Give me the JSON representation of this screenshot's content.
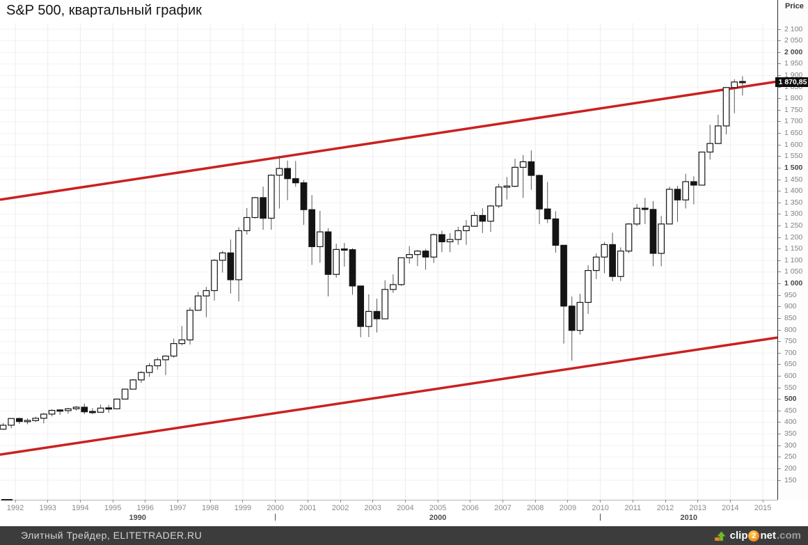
{
  "title": "S&P 500, квартальный график",
  "price_axis": {
    "label": "Price",
    "badge": "1 870,85"
  },
  "footer": {
    "credit": "Элитный Трейдер, ELITETRADER.RU",
    "logo": {
      "pre": "clip",
      "num": "2",
      "post": "net",
      "tld": ".com"
    }
  },
  "chart_data": {
    "type": "candlestick",
    "title": "S&P 500, квартальный график",
    "symbol": "S&P 500",
    "frequency": "quarterly",
    "ylabel": "Price",
    "last_price": 1870.85,
    "y_axis": {
      "min": 150,
      "max": 2100,
      "step": 50,
      "bold_step": 500
    },
    "x_axis": {
      "years": [
        1992,
        1993,
        1994,
        1995,
        1996,
        1997,
        1998,
        1999,
        2000,
        2001,
        2002,
        2003,
        2004,
        2005,
        2006,
        2007,
        2008,
        2009,
        2010,
        2011,
        2012,
        2013,
        2014,
        2015
      ],
      "decade_labels": [
        "1990",
        "2000",
        "2010"
      ],
      "decade_boundaries": [
        2000,
        2010
      ]
    },
    "trend_channel": {
      "color": "#cb2020",
      "upper": {
        "start_price": 1363,
        "end_price": 1874
      },
      "lower": {
        "start_price": 261,
        "end_price": 767
      }
    },
    "candles": [
      [
        "1991Q3",
        371,
        397,
        368,
        388
      ],
      [
        "1991Q4",
        388,
        417,
        375,
        417
      ],
      [
        "1992Q1",
        417,
        421,
        394,
        404
      ],
      [
        "1992Q2",
        404,
        418,
        392,
        408
      ],
      [
        "1992Q3",
        408,
        425,
        402,
        418
      ],
      [
        "1992Q4",
        418,
        441,
        396,
        436
      ],
      [
        "1993Q1",
        436,
        457,
        426,
        452
      ],
      [
        "1993Q2",
        452,
        456,
        433,
        451
      ],
      [
        "1993Q3",
        451,
        463,
        438,
        459
      ],
      [
        "1993Q4",
        459,
        471,
        452,
        466
      ],
      [
        "1994Q1",
        466,
        482,
        436,
        446
      ],
      [
        "1994Q2",
        446,
        462,
        435,
        444
      ],
      [
        "1994Q3",
        444,
        477,
        444,
        462
      ],
      [
        "1994Q4",
        462,
        476,
        442,
        459
      ],
      [
        "1995Q1",
        459,
        503,
        457,
        501
      ],
      [
        "1995Q2",
        501,
        546,
        501,
        544
      ],
      [
        "1995Q3",
        544,
        587,
        544,
        584
      ],
      [
        "1995Q4",
        584,
        622,
        571,
        616
      ],
      [
        "1996Q1",
        616,
        657,
        597,
        645
      ],
      [
        "1996Q2",
        645,
        681,
        628,
        671
      ],
      [
        "1996Q3",
        671,
        690,
        605,
        687
      ],
      [
        "1996Q4",
        687,
        762,
        680,
        741
      ],
      [
        "1997Q1",
        741,
        817,
        733,
        757
      ],
      [
        "1997Q2",
        757,
        898,
        737,
        885
      ],
      [
        "1997Q3",
        885,
        965,
        885,
        947
      ],
      [
        "1997Q4",
        947,
        986,
        855,
        970
      ],
      [
        "1998Q1",
        970,
        1106,
        927,
        1101
      ],
      [
        "1998Q2",
        1101,
        1142,
        1048,
        1133
      ],
      [
        "1998Q3",
        1133,
        1191,
        957,
        1017
      ],
      [
        "1998Q4",
        1017,
        1244,
        923,
        1229
      ],
      [
        "1999Q1",
        1229,
        1327,
        1212,
        1286
      ],
      [
        "1999Q2",
        1286,
        1375,
        1282,
        1372
      ],
      [
        "1999Q3",
        1372,
        1420,
        1233,
        1283
      ],
      [
        "1999Q4",
        1283,
        1473,
        1233,
        1469
      ],
      [
        "2000Q1",
        1469,
        1553,
        1325,
        1498
      ],
      [
        "2000Q2",
        1498,
        1532,
        1361,
        1454
      ],
      [
        "2000Q3",
        1454,
        1530,
        1419,
        1436
      ],
      [
        "2000Q4",
        1436,
        1448,
        1254,
        1320
      ],
      [
        "2001Q1",
        1320,
        1383,
        1081,
        1160
      ],
      [
        "2001Q2",
        1160,
        1315,
        1091,
        1224
      ],
      [
        "2001Q3",
        1224,
        1240,
        945,
        1040
      ],
      [
        "2001Q4",
        1040,
        1173,
        1026,
        1148
      ],
      [
        "2002Q1",
        1148,
        1176,
        1074,
        1147
      ],
      [
        "2002Q2",
        1147,
        1154,
        952,
        990
      ],
      [
        "2002Q3",
        990,
        990,
        768,
        815
      ],
      [
        "2002Q4",
        815,
        954,
        769,
        880
      ],
      [
        "2003Q1",
        880,
        935,
        789,
        848
      ],
      [
        "2003Q2",
        848,
        1015,
        847,
        975
      ],
      [
        "2003Q3",
        975,
        1040,
        960,
        996
      ],
      [
        "2003Q4",
        996,
        1112,
        990,
        1112
      ],
      [
        "2004Q1",
        1112,
        1163,
        1087,
        1126
      ],
      [
        "2004Q2",
        1126,
        1146,
        1076,
        1141
      ],
      [
        "2004Q3",
        1141,
        1150,
        1060,
        1115
      ],
      [
        "2004Q4",
        1115,
        1217,
        1090,
        1212
      ],
      [
        "2005Q1",
        1212,
        1229,
        1136,
        1181
      ],
      [
        "2005Q2",
        1181,
        1219,
        1136,
        1191
      ],
      [
        "2005Q3",
        1191,
        1246,
        1168,
        1229
      ],
      [
        "2005Q4",
        1229,
        1275,
        1168,
        1248
      ],
      [
        "2006Q1",
        1248,
        1310,
        1246,
        1295
      ],
      [
        "2006Q2",
        1295,
        1326,
        1219,
        1270
      ],
      [
        "2006Q3",
        1270,
        1340,
        1224,
        1336
      ],
      [
        "2006Q4",
        1336,
        1432,
        1327,
        1418
      ],
      [
        "2007Q1",
        1418,
        1461,
        1364,
        1421
      ],
      [
        "2007Q2",
        1421,
        1540,
        1417,
        1503
      ],
      [
        "2007Q3",
        1503,
        1556,
        1371,
        1527
      ],
      [
        "2007Q4",
        1527,
        1576,
        1406,
        1468
      ],
      [
        "2008Q1",
        1468,
        1472,
        1257,
        1323
      ],
      [
        "2008Q2",
        1323,
        1440,
        1262,
        1280
      ],
      [
        "2008Q3",
        1280,
        1313,
        1134,
        1166
      ],
      [
        "2008Q4",
        1166,
        1167,
        741,
        903
      ],
      [
        "2009Q1",
        903,
        944,
        667,
        798
      ],
      [
        "2009Q2",
        798,
        956,
        780,
        919
      ],
      [
        "2009Q3",
        919,
        1080,
        869,
        1057
      ],
      [
        "2009Q4",
        1057,
        1130,
        1020,
        1115
      ],
      [
        "2010Q1",
        1115,
        1180,
        1045,
        1169
      ],
      [
        "2010Q2",
        1169,
        1220,
        1011,
        1031
      ],
      [
        "2010Q3",
        1031,
        1157,
        1011,
        1141
      ],
      [
        "2010Q4",
        1141,
        1262,
        1132,
        1258
      ],
      [
        "2011Q1",
        1258,
        1344,
        1249,
        1326
      ],
      [
        "2011Q2",
        1326,
        1371,
        1258,
        1321
      ],
      [
        "2011Q3",
        1321,
        1357,
        1075,
        1131
      ],
      [
        "2011Q4",
        1131,
        1293,
        1075,
        1258
      ],
      [
        "2012Q1",
        1258,
        1419,
        1258,
        1408
      ],
      [
        "2012Q2",
        1408,
        1422,
        1267,
        1362
      ],
      [
        "2012Q3",
        1362,
        1475,
        1325,
        1441
      ],
      [
        "2012Q4",
        1441,
        1464,
        1343,
        1426
      ],
      [
        "2013Q1",
        1426,
        1570,
        1426,
        1569
      ],
      [
        "2013Q2",
        1569,
        1687,
        1536,
        1606
      ],
      [
        "2013Q3",
        1606,
        1730,
        1604,
        1682
      ],
      [
        "2013Q4",
        1682,
        1849,
        1646,
        1848
      ],
      [
        "2014Q1",
        1848,
        1884,
        1737,
        1872
      ],
      [
        "2014Q2",
        1872,
        1897,
        1814,
        1870.85
      ]
    ]
  }
}
